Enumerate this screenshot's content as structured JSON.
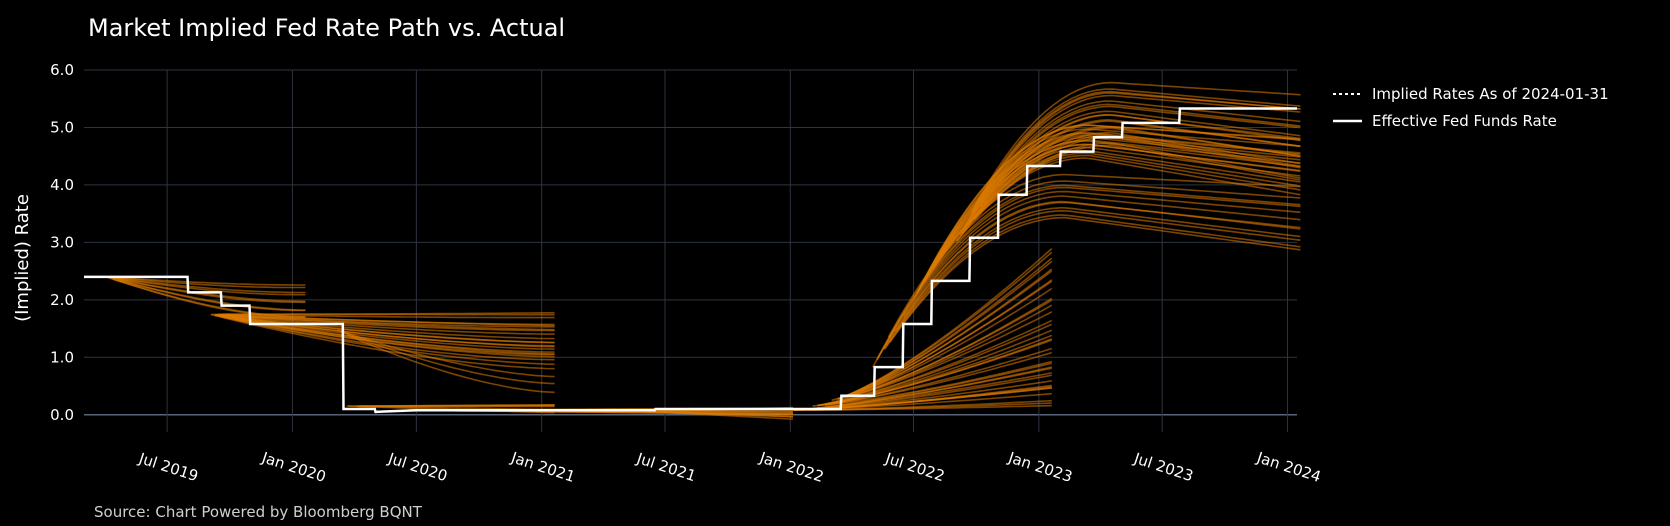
{
  "chart_data": {
    "type": "line",
    "title": "Market Implied Fed Rate Path vs. Actual",
    "ylabel": "(Implied) Rate",
    "xlabel": "",
    "source": "Source: Chart Powered by Bloomberg BQNT",
    "xlim": [
      "2019-03-01",
      "2024-01-15"
    ],
    "ylim": [
      -0.3,
      6.0
    ],
    "yticks": [
      {
        "value": 0,
        "label": "0.0"
      },
      {
        "value": 1,
        "label": "1.0"
      },
      {
        "value": 2,
        "label": "2.0"
      },
      {
        "value": 3,
        "label": "3.0"
      },
      {
        "value": 4,
        "label": "4.0"
      },
      {
        "value": 5,
        "label": "5.0"
      },
      {
        "value": 6,
        "label": "6.0"
      }
    ],
    "xticks": [
      {
        "date": "2019-07-01",
        "label": "Jul 2019"
      },
      {
        "date": "2020-01-01",
        "label": "Jan 2020"
      },
      {
        "date": "2020-07-01",
        "label": "Jul 2020"
      },
      {
        "date": "2021-01-01",
        "label": "Jan 2021"
      },
      {
        "date": "2021-07-01",
        "label": "Jul 2021"
      },
      {
        "date": "2022-01-01",
        "label": "Jan 2022"
      },
      {
        "date": "2022-07-01",
        "label": "Jul 2022"
      },
      {
        "date": "2023-01-01",
        "label": "Jan 2023"
      },
      {
        "date": "2023-07-01",
        "label": "Jul 2023"
      },
      {
        "date": "2024-01-01",
        "label": "Jan 2024"
      }
    ],
    "grid": true,
    "legend_position": "top-right",
    "legend": [
      {
        "name": "Implied Rates As of 2024-01-31",
        "style": "dotted",
        "color": "#ffffff"
      },
      {
        "name": "Effective Fed Funds Rate",
        "style": "solid",
        "color": "#ffffff"
      }
    ],
    "colors": {
      "background": "#000000",
      "grid": "#2e3440",
      "implied": "#e07b00",
      "effective": "#ffffff",
      "zero_line": "#5a6478"
    },
    "effective_rate": {
      "name": "Effective Fed Funds Rate",
      "x": [
        "2019-03-01",
        "2019-07-31",
        "2019-08-01",
        "2019-09-18",
        "2019-09-19",
        "2019-10-30",
        "2019-10-31",
        "2020-03-03",
        "2020-03-04",
        "2020-03-15",
        "2020-03-16",
        "2020-05-01",
        "2020-05-02",
        "2020-07-01",
        "2021-06-16",
        "2021-06-17",
        "2022-03-16",
        "2022-03-17",
        "2022-05-04",
        "2022-05-05",
        "2022-06-15",
        "2022-06-16",
        "2022-07-27",
        "2022-07-28",
        "2022-09-21",
        "2022-09-22",
        "2022-11-02",
        "2022-11-03",
        "2022-12-14",
        "2022-12-15",
        "2023-02-01",
        "2023-02-02",
        "2023-03-22",
        "2023-03-23",
        "2023-05-03",
        "2023-05-04",
        "2023-07-26",
        "2023-07-27",
        "2024-01-15"
      ],
      "y": [
        2.4,
        2.4,
        2.13,
        2.13,
        1.9,
        1.9,
        1.58,
        1.58,
        1.58,
        1.58,
        0.1,
        0.1,
        0.05,
        0.08,
        0.08,
        0.1,
        0.1,
        0.33,
        0.33,
        0.83,
        0.83,
        1.58,
        1.58,
        2.33,
        2.33,
        3.08,
        3.08,
        3.83,
        3.83,
        4.33,
        4.33,
        4.58,
        4.58,
        4.83,
        4.83,
        5.08,
        5.08,
        5.33,
        5.33
      ]
    },
    "implied_groups": [
      {
        "start": "2019-04-01",
        "end": "2020-01-20",
        "r0": 2.4,
        "lo": 1.7,
        "hi": 2.25,
        "n": 10,
        "shape": "sag"
      },
      {
        "start": "2019-09-01",
        "end": "2021-01-20",
        "r0": 1.75,
        "lo": 0.85,
        "hi": 1.75,
        "n": 22,
        "shape": "decline"
      },
      {
        "start": "2020-03-01",
        "end": "2021-01-20",
        "r0": 1.5,
        "lo": 0.4,
        "hi": 0.7,
        "n": 3,
        "shape": "decline"
      },
      {
        "start": "2020-03-20",
        "end": "2021-01-20",
        "r0": 0.15,
        "lo": 0.05,
        "hi": 0.15,
        "n": 6,
        "shape": "flat"
      },
      {
        "start": "2020-06-01",
        "end": "2022-01-05",
        "r0": 0.08,
        "lo": 0.04,
        "hi": 0.12,
        "n": 8,
        "shape": "flat"
      },
      {
        "start": "2021-06-01",
        "end": "2022-01-05",
        "r0": 0.06,
        "lo": -0.05,
        "hi": 0.1,
        "n": 6,
        "shape": "flat"
      },
      {
        "start": "2022-01-05",
        "end": "2023-01-20",
        "r0": 0.08,
        "lo": 0.2,
        "hi": 0.9,
        "n": 14,
        "shape": "rise"
      },
      {
        "start": "2022-02-01",
        "end": "2023-01-20",
        "r0": 0.15,
        "lo": 1.0,
        "hi": 1.8,
        "n": 10,
        "shape": "rise"
      },
      {
        "start": "2022-03-01",
        "end": "2023-01-20",
        "r0": 0.25,
        "lo": 1.9,
        "hi": 2.9,
        "n": 12,
        "shape": "rise"
      },
      {
        "start": "2022-05-01",
        "end": "2024-01-20",
        "r0": 0.8,
        "lo": 2.8,
        "hi": 3.9,
        "n": 12,
        "shape": "humprise"
      },
      {
        "start": "2022-07-01",
        "end": "2024-01-20",
        "r0": 2.0,
        "lo": 3.9,
        "hi": 4.8,
        "n": 16,
        "shape": "humprise"
      },
      {
        "start": "2022-09-01",
        "end": "2024-01-20",
        "r0": 3.0,
        "lo": 4.1,
        "hi": 5.5,
        "n": 20,
        "shape": "humprise"
      }
    ]
  }
}
